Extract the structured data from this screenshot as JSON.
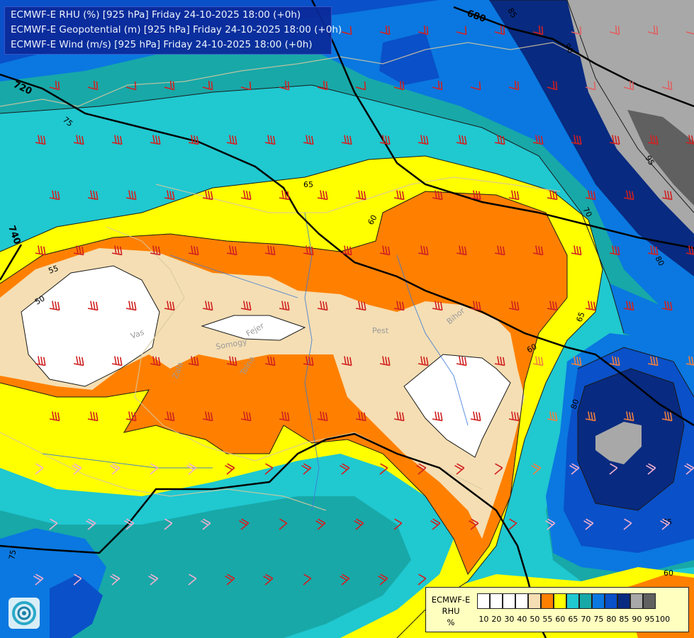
{
  "title_lines": [
    "ECMWF-E RHU (%) [925 hPa] Friday 24-10-2025 18:00 (+0h)",
    "ECMWF-E Geopotential (m) [925 hPa] Friday 24-10-2025 18:00 (+0h)",
    "ECMWF-E Wind (m/s) [925 hPa] Friday 24-10-2025 18:00 (+0h)"
  ],
  "legend": {
    "title_line1": "ECMWF-E",
    "title_line2": "RHU",
    "title_line3": "%",
    "ticks": [
      "10",
      "20",
      "30",
      "40",
      "50",
      "55",
      "60",
      "65",
      "70",
      "75",
      "80",
      "85",
      "90",
      "95",
      "100"
    ],
    "colors": [
      "#ffffff",
      "#ffffff",
      "#ffffff",
      "#ffffff",
      "#f5deb3",
      "#ff8000",
      "#ffff00",
      "#20c8d0",
      "#18a8a8",
      "#0a78e0",
      "#0a50c8",
      "#082a80",
      "#a8a8a8",
      "#606060"
    ]
  },
  "geopotential_labels": [
    "680",
    "720",
    "740"
  ],
  "rhu_labels": [
    "85",
    "90",
    "95",
    "75",
    "65",
    "70",
    "60",
    "55",
    "50",
    "80",
    "65",
    "60",
    "80",
    "75",
    "60",
    "75"
  ],
  "place_labels": [
    "Vas",
    "Somogy",
    "Tolna",
    "Zala",
    "Pest",
    "Bihor",
    "Fejer"
  ],
  "colors": {
    "rh_50": "#f5deb3",
    "rh_55": "#ff8000",
    "rh_60": "#ffff00",
    "rh_65": "#20c8d0",
    "rh_70": "#18a8a8",
    "rh_75": "#0a78e0",
    "rh_80": "#0a50c8",
    "rh_85": "#082a80",
    "rh_90": "#a8a8a8",
    "rh_95": "#606060"
  }
}
